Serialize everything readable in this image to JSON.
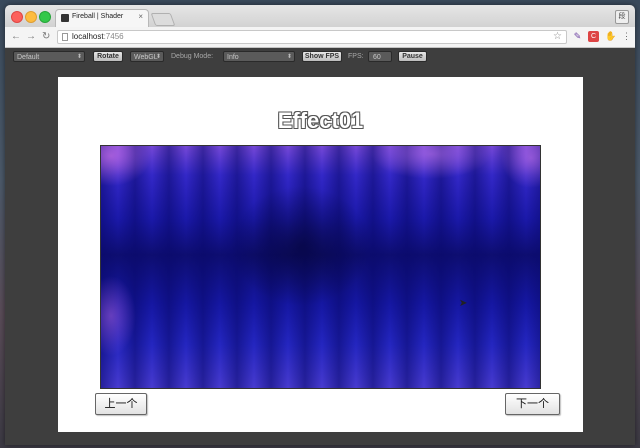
{
  "browser": {
    "tab": {
      "title": "Fireball | Shader"
    },
    "address": {
      "host": "localhost",
      "port": ":7456"
    },
    "profile_label": "段"
  },
  "controls": {
    "preset_select": "Default",
    "rotate_label": "Rotate",
    "renderer_select": "WebGL",
    "debug_mode_label": "Debug Mode:",
    "debug_mode_select": "Info",
    "show_fps_label": "Show FPS",
    "fps_label": "FPS:",
    "fps_value": "60",
    "pause_label": "Pause"
  },
  "content": {
    "title": "Effect01",
    "prev_label": "上一个",
    "next_label": "下一个"
  },
  "colors": {
    "shader_top": "#7a4ad8",
    "shader_mid": "#0c0c6c",
    "shader_bottom": "#4a3cd0"
  },
  "icons": {
    "back": "arrow-left",
    "forward": "arrow-right",
    "reload": "reload",
    "bookmark": "star",
    "menu": "three-dots-vertical"
  }
}
